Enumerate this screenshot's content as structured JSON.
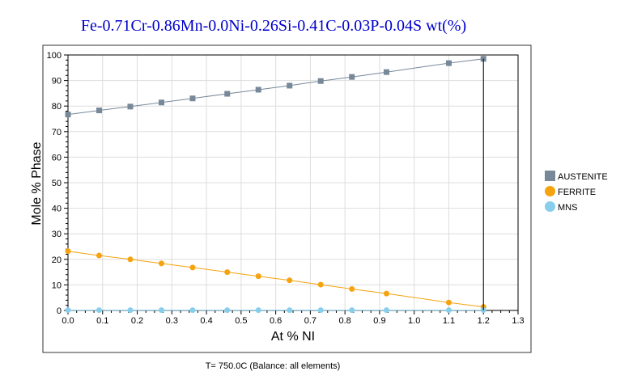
{
  "chart_data": {
    "type": "line",
    "title": "Fe-0.71Cr-0.86Mn-0.0Ni-0.26Si-0.41C-0.03P-0.04S wt(%)",
    "xlabel": "At % NI",
    "ylabel": "Mole % Phase",
    "footnote": "T= 750.0C (Balance: all elements)",
    "xlim": [
      0.0,
      1.3
    ],
    "ylim": [
      0,
      100
    ],
    "xticks": [
      "0.0",
      "0.1",
      "0.2",
      "0.3",
      "0.4",
      "0.5",
      "0.6",
      "0.7",
      "0.8",
      "0.9",
      "1.0",
      "1.1",
      "1.2",
      "1.3"
    ],
    "yticks": [
      "0",
      "10",
      "20",
      "30",
      "40",
      "50",
      "60",
      "70",
      "80",
      "90",
      "100"
    ],
    "grid": true,
    "legend_position": "right",
    "x": [
      0.0,
      0.09,
      0.18,
      0.27,
      0.36,
      0.46,
      0.55,
      0.64,
      0.73,
      0.82,
      0.92,
      1.1,
      1.2
    ],
    "series": [
      {
        "name": "AUSTENITE",
        "color": "#778899",
        "marker": "square",
        "values": [
          76.7,
          78.3,
          79.8,
          81.4,
          83.0,
          84.8,
          86.4,
          88.0,
          89.8,
          91.4,
          93.3,
          96.8,
          98.5
        ]
      },
      {
        "name": "FERRITE",
        "color": "#f5a30f",
        "marker": "circle",
        "values": [
          23.2,
          21.5,
          20.0,
          18.4,
          16.8,
          15.0,
          13.4,
          11.8,
          10.1,
          8.4,
          6.6,
          3.1,
          1.4
        ]
      },
      {
        "name": "MNS",
        "color": "#87ceeb",
        "marker": "circle",
        "values": [
          0.1,
          0.1,
          0.1,
          0.1,
          0.1,
          0.1,
          0.1,
          0.1,
          0.1,
          0.1,
          0.1,
          0.1,
          0.1
        ]
      }
    ],
    "drop_line": {
      "x": 1.2,
      "from": 98.5,
      "to": 0
    }
  }
}
